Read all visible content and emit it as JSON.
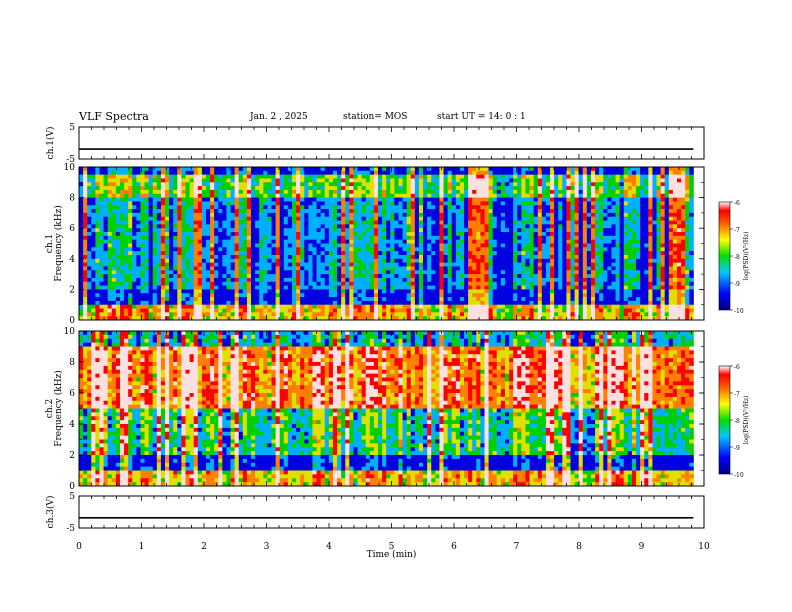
{
  "header": {
    "title": "VLF Spectra",
    "date": "Jan. 2 , 2025",
    "station": "station= MOS",
    "start": "start UT = 14: 0 : 1"
  },
  "chart_data": [
    {
      "type": "line",
      "panel": "ch1-voltage",
      "ylabel": "ch.1(V)",
      "ylim": [
        -5,
        5
      ],
      "yticks": [
        "5",
        "-5"
      ],
      "xlim": [
        0,
        10
      ],
      "series": [
        {
          "x": [
            0,
            9.83
          ],
          "values": [
            -1.9,
            -1.9
          ]
        }
      ]
    },
    {
      "type": "heatmap",
      "panel": "ch1-spectrogram",
      "ylabel": "ch.1 Frequency (kHz)",
      "ylim": [
        0,
        10
      ],
      "yticks": [
        "0",
        "2",
        "4",
        "6",
        "8",
        "10"
      ],
      "xlim": [
        0,
        10
      ],
      "colorbar": {
        "label": "log(PSD)(V²/Hz)",
        "range": [
          -10,
          -6
        ],
        "ticks": [
          "-6",
          "-7",
          "-8",
          "-9",
          "-10"
        ]
      },
      "description_levels": {
        "below_1kHz": -7,
        "1_to_2kHz": -10,
        "2_to_8kHz": -9,
        "above_8kHz": -8
      }
    },
    {
      "type": "heatmap",
      "panel": "ch2-spectrogram",
      "ylabel": "ch.2 Frequency (kHz)",
      "ylim": [
        0,
        10
      ],
      "yticks": [
        "0",
        "2",
        "4",
        "6",
        "8",
        "10"
      ],
      "xlim": [
        0,
        10
      ],
      "colorbar": {
        "label": "log(PSD)(V²/Hz)",
        "range": [
          -10,
          -6
        ],
        "ticks": [
          "-6",
          "-7",
          "-8",
          "-9",
          "-10"
        ]
      },
      "description_levels": {
        "below_1kHz": -7,
        "1_to_2kHz": -10,
        "2_to_5kHz": -8.5,
        "5_to_9kHz": -6.5
      }
    },
    {
      "type": "line",
      "panel": "ch3-voltage",
      "ylabel": "ch.3(V)",
      "ylim": [
        -5,
        5
      ],
      "yticks": [
        "5",
        "-5"
      ],
      "xlim": [
        0,
        10
      ],
      "series": [
        {
          "x": [
            0,
            9.83
          ],
          "values": [
            -1.8,
            -1.8
          ]
        }
      ]
    }
  ],
  "xaxis": {
    "label": "Time (min)",
    "ticks": [
      "0",
      "1",
      "2",
      "3",
      "4",
      "5",
      "6",
      "7",
      "8",
      "9",
      "10"
    ]
  }
}
